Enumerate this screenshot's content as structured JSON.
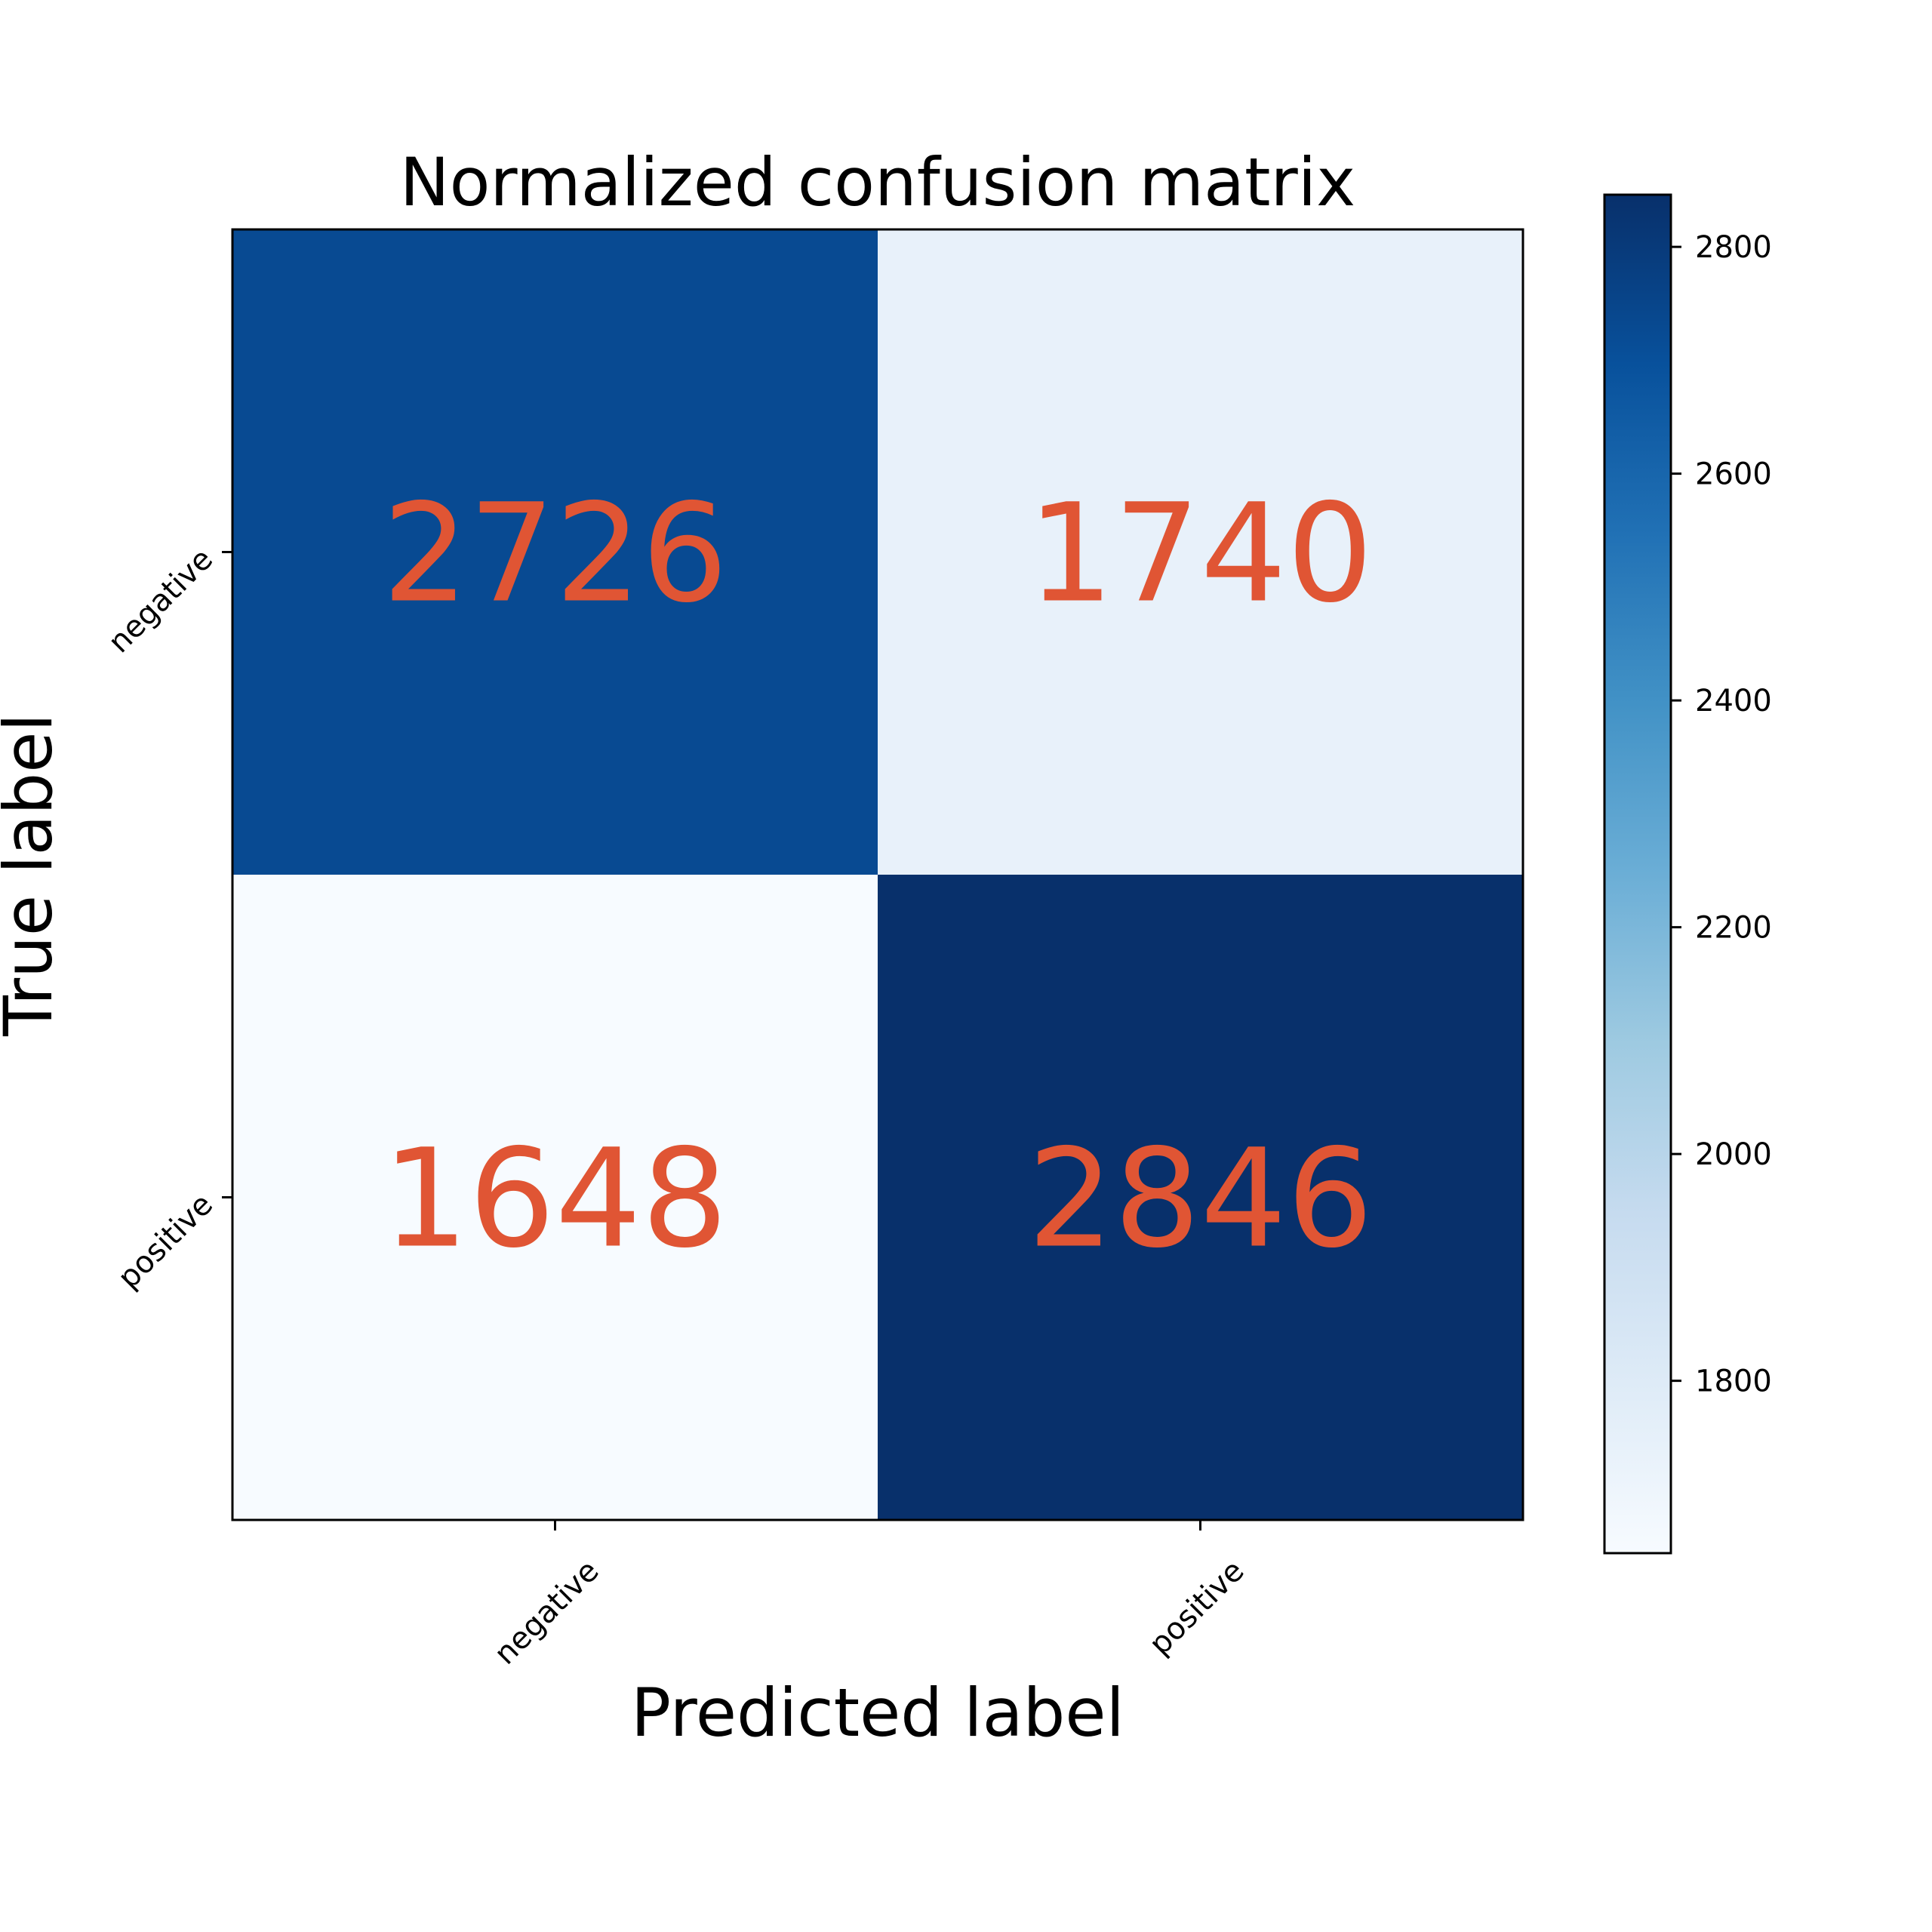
{
  "chart_data": {
    "type": "heatmap",
    "title": "Normalized confusion matrix",
    "xlabel": "Predicted label",
    "ylabel": "True label",
    "x_categories": [
      "negative",
      "positive"
    ],
    "y_categories": [
      "negative",
      "positive"
    ],
    "values": [
      [
        2726,
        1740
      ],
      [
        1648,
        2846
      ]
    ],
    "colormap": "Blues",
    "colorbar": {
      "min": 1648,
      "max": 2846,
      "ticks": [
        1800,
        2000,
        2200,
        2400,
        2600,
        2800
      ]
    },
    "annotation_color": "#e05534",
    "grid": false
  }
}
